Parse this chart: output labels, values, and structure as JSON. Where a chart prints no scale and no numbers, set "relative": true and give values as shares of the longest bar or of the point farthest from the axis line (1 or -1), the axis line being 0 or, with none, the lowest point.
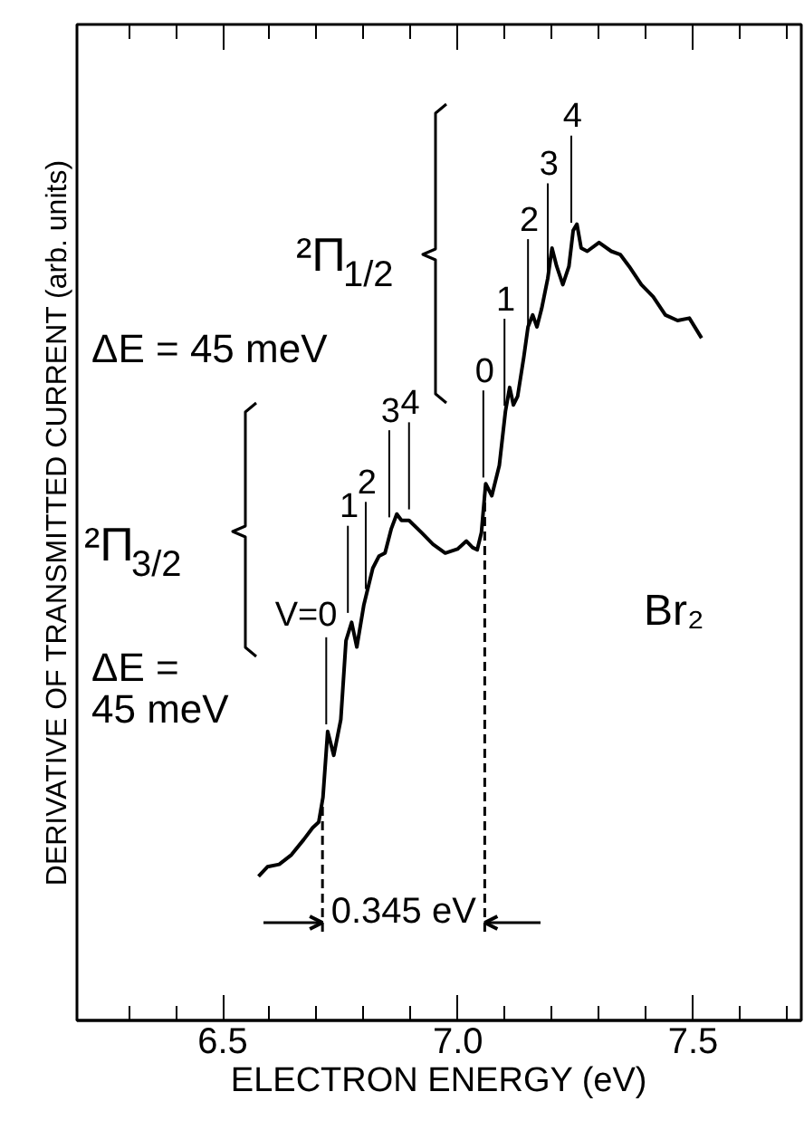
{
  "chart_data": {
    "type": "line",
    "xlabel": "ELECTRON ENERGY (eV)",
    "ylabel": "DERIVATIVE OF TRANSMITTED CURRENT (arb. units)",
    "relative": true,
    "xlim": [
      6.19,
      7.73
    ],
    "xticks": [
      {
        "value": 6.3,
        "label": null
      },
      {
        "value": 6.4,
        "label": null
      },
      6.5,
      {
        "value": 6.6,
        "label": null
      },
      {
        "value": 6.7,
        "label": null
      },
      {
        "value": 6.8,
        "label": null
      },
      {
        "value": 6.9,
        "label": null
      },
      {
        "value": 7,
        "label": "7.0"
      },
      {
        "value": 7.1,
        "label": null
      },
      {
        "value": 7.2,
        "label": null
      },
      {
        "value": 7.3,
        "label": null
      },
      {
        "value": 7.4,
        "label": null
      },
      7.5,
      {
        "value": 7.6,
        "label": null
      },
      {
        "value": 7.7,
        "label": null
      }
    ],
    "series": [
      {
        "color": "#000000",
        "x": [
          6.576,
          6.595,
          6.62,
          6.646,
          6.672,
          6.691,
          6.704,
          6.713,
          6.723,
          6.736,
          6.751,
          6.762,
          6.774,
          6.785,
          6.8,
          6.819,
          6.832,
          6.845,
          6.858,
          6.87,
          6.88,
          6.896,
          6.922,
          6.947,
          6.973,
          6.999,
          7.018,
          7.031,
          7.041,
          7.05,
          7.059,
          7.072,
          7.088,
          7.101,
          7.11,
          7.118,
          7.127,
          7.14,
          7.149,
          7.159,
          7.168,
          7.178,
          7.191,
          7.2,
          7.21,
          7.223,
          7.236,
          7.245,
          7.253,
          7.262,
          7.275,
          7.3,
          7.326,
          7.345,
          7.364,
          7.39,
          7.415,
          7.441,
          7.467,
          7.492,
          7.518
        ],
        "values": [
          0.181,
          0.193,
          0.196,
          0.208,
          0.227,
          0.242,
          0.249,
          0.28,
          0.363,
          0.333,
          0.378,
          0.477,
          0.5,
          0.469,
          0.522,
          0.568,
          0.583,
          0.587,
          0.617,
          0.636,
          0.628,
          0.628,
          0.613,
          0.598,
          0.587,
          0.592,
          0.602,
          0.594,
          0.591,
          0.613,
          0.674,
          0.659,
          0.697,
          0.765,
          0.795,
          0.773,
          0.784,
          0.833,
          0.871,
          0.886,
          0.871,
          0.894,
          0.932,
          0.97,
          0.947,
          0.924,
          0.947,
          0.992,
          1.0,
          0.97,
          0.966,
          0.977,
          0.966,
          0.962,
          0.947,
          0.924,
          0.909,
          0.886,
          0.879,
          0.882,
          0.857
        ]
      }
    ],
    "ref_lines": [
      {
        "axis": "x",
        "value": 6.712,
        "line_style": "dashed"
      },
      {
        "axis": "x",
        "value": 7.057,
        "line_style": "dashed"
      }
    ],
    "annotations": [
      "²Π$_{1/2}$",
      "ΔE = 45 meV",
      "²Π$_{3/2}$",
      "ΔE =\n45 meV",
      "Br₂",
      "0.345 eV",
      {
        "text": "V=0",
        "x": 6.72,
        "y": 0.36
      },
      {
        "text": "1",
        "x": 6.766,
        "y": 0.5
      },
      {
        "text": "2",
        "x": 6.804,
        "y": 0.53
      },
      {
        "text": "3",
        "x": 6.854,
        "y": 0.62
      },
      {
        "text": "4",
        "x": 6.896,
        "y": 0.63
      },
      {
        "text": "0",
        "x": 7.054,
        "y": 0.67
      },
      {
        "text": "1",
        "x": 7.099,
        "y": 0.76
      },
      {
        "text": "2",
        "x": 7.149,
        "y": 0.86
      },
      {
        "text": "3",
        "x": 7.191,
        "y": 0.93
      },
      {
        "text": "4",
        "x": 7.241,
        "y": 0.99
      }
    ]
  }
}
